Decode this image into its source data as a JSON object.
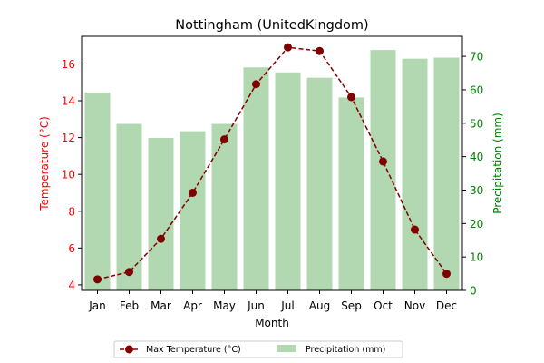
{
  "chart_data": {
    "type": "bar+line",
    "title": "Nottingham (UnitedKingdom)",
    "xlabel": "Month",
    "ylabel_left": "Temperature (°C)",
    "ylabel_right": "Precipitation (mm)",
    "categories": [
      "Jan",
      "Feb",
      "Mar",
      "Apr",
      "May",
      "Jun",
      "Jul",
      "Aug",
      "Sep",
      "Oct",
      "Nov",
      "Dec"
    ],
    "ylim_left": [
      3.7,
      17.5
    ],
    "ylim_right": [
      0,
      76
    ],
    "yticks_left": [
      4,
      6,
      8,
      10,
      12,
      14,
      16
    ],
    "yticks_right": [
      0,
      10,
      20,
      30,
      40,
      50,
      60,
      70
    ],
    "series": [
      {
        "name": "Max Temperature (°C)",
        "kind": "line",
        "axis": "left",
        "color": "#800000",
        "values": [
          4.3,
          4.7,
          6.5,
          9.0,
          11.9,
          14.9,
          16.9,
          16.7,
          14.2,
          10.7,
          7.0,
          4.6
        ]
      },
      {
        "name": "Precipitation (mm)",
        "kind": "bar",
        "axis": "right",
        "color": "#b2d8b2",
        "values": [
          59.2,
          49.8,
          45.6,
          47.6,
          49.8,
          66.7,
          65.2,
          63.6,
          57.7,
          71.9,
          69.3,
          69.6
        ]
      }
    ],
    "left_axis_color": "#ff0000",
    "right_axis_color": "#008000",
    "legend_position": "bottom-center",
    "grid": false
  }
}
